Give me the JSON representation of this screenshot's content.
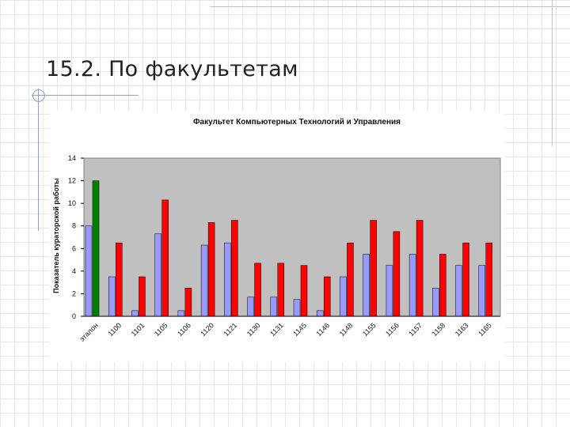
{
  "slide": {
    "title": "15.2. По факультетам"
  },
  "colors": {
    "plot_background": "#c0c0c0",
    "series_blue": "#9999ff",
    "series_red": "#ff0000",
    "series_green": "#008000",
    "grid": "#000000",
    "decoration": "#8ea3c8"
  },
  "chart_data": {
    "type": "bar",
    "title": "Факультет Компьютерных Технологий и Управления",
    "xlabel": "",
    "ylabel": "Показатель кураторской работы",
    "ylim": [
      0,
      14
    ],
    "yticks": [
      0,
      2,
      4,
      6,
      8,
      10,
      12,
      14
    ],
    "grid": false,
    "legend": "none",
    "categories": [
      "эталон",
      "1100",
      "1101",
      "1105",
      "1106",
      "1120",
      "1121",
      "1130",
      "1131",
      "1145",
      "1146",
      "1148",
      "1155",
      "1156",
      "1157",
      "1158",
      "1163",
      "1165"
    ],
    "series": [
      {
        "color": "#9999ff",
        "values": [
          8,
          3.5,
          0.5,
          7.3,
          0.5,
          6.3,
          6.5,
          1.7,
          1.7,
          1.5,
          0.5,
          3.5,
          5.5,
          4.5,
          5.5,
          2.5,
          4.5,
          4.5
        ]
      },
      {
        "color": "#ff0000",
        "values": [
          12,
          6.5,
          3.5,
          10.3,
          2.5,
          8.3,
          8.5,
          4.7,
          4.7,
          4.5,
          3.5,
          6.5,
          8.5,
          7.5,
          8.5,
          5.5,
          6.5,
          6.5
        ]
      }
    ],
    "first_category_second_bar_color": "#008000"
  }
}
